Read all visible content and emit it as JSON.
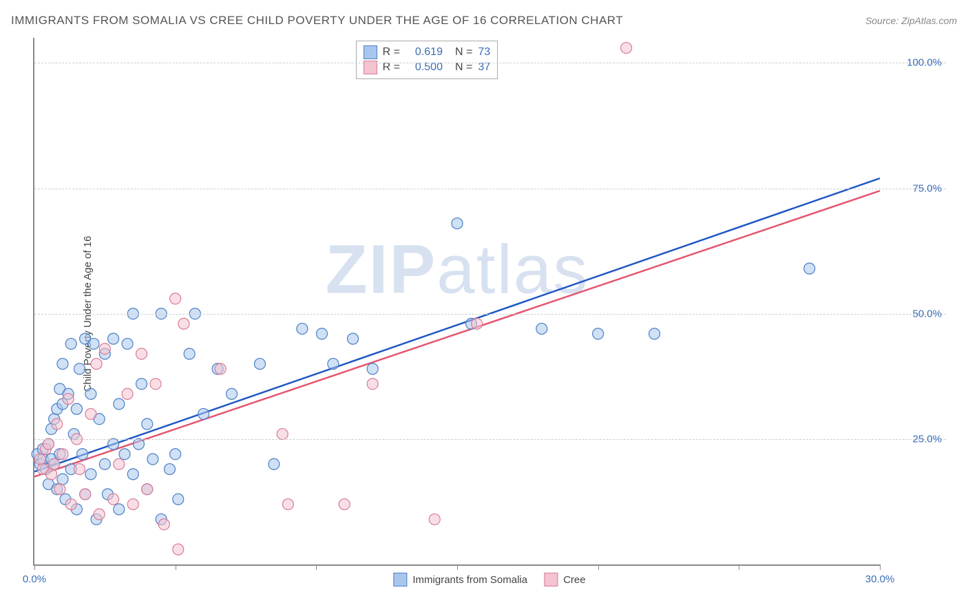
{
  "title": "IMMIGRANTS FROM SOMALIA VS CREE CHILD POVERTY UNDER THE AGE OF 16 CORRELATION CHART",
  "source": "Source: ZipAtlas.com",
  "y_axis_label": "Child Poverty Under the Age of 16",
  "watermark_a": "ZIP",
  "watermark_b": "atlas",
  "chart": {
    "type": "scatter",
    "xlim": [
      0,
      30
    ],
    "ylim": [
      0,
      105
    ],
    "x_ticks": [
      0,
      5,
      10,
      15,
      20,
      25,
      30
    ],
    "x_tick_labels": {
      "0": "0.0%",
      "30": "30.0%"
    },
    "y_ticks": [
      25,
      50,
      75,
      100
    ],
    "y_tick_labels": {
      "25": "25.0%",
      "50": "50.0%",
      "75": "75.0%",
      "100": "100.0%"
    },
    "grid_color": "#cccccc",
    "axis_color": "#888888",
    "tick_label_color": "#3b6db5",
    "background_color": "#ffffff",
    "marker_radius": 8,
    "marker_opacity": 0.55,
    "series": [
      {
        "name": "Immigrants from Somalia",
        "fill": "#a9c6ec",
        "stroke": "#4a7fc4",
        "line_color": "#1f57c4",
        "R": "0.619",
        "N": "73",
        "reg_start": [
          0,
          18.5
        ],
        "reg_end": [
          30,
          77.0
        ],
        "points": [
          [
            0.1,
            22
          ],
          [
            0.2,
            20
          ],
          [
            0.3,
            21
          ],
          [
            0.3,
            23
          ],
          [
            0.4,
            19
          ],
          [
            0.5,
            24
          ],
          [
            0.5,
            16
          ],
          [
            0.6,
            21
          ],
          [
            0.6,
            27
          ],
          [
            0.7,
            20
          ],
          [
            0.7,
            29
          ],
          [
            0.8,
            31
          ],
          [
            0.8,
            15
          ],
          [
            0.9,
            22
          ],
          [
            0.9,
            35
          ],
          [
            1.0,
            17
          ],
          [
            1.0,
            32
          ],
          [
            1.0,
            40
          ],
          [
            1.1,
            13
          ],
          [
            1.2,
            34
          ],
          [
            1.3,
            19
          ],
          [
            1.3,
            44
          ],
          [
            1.4,
            26
          ],
          [
            1.5,
            31
          ],
          [
            1.5,
            11
          ],
          [
            1.6,
            39
          ],
          [
            1.7,
            22
          ],
          [
            1.8,
            45
          ],
          [
            1.8,
            14
          ],
          [
            2.0,
            34
          ],
          [
            2.0,
            18
          ],
          [
            2.1,
            44
          ],
          [
            2.2,
            9
          ],
          [
            2.3,
            29
          ],
          [
            2.5,
            20
          ],
          [
            2.5,
            42
          ],
          [
            2.6,
            14
          ],
          [
            2.8,
            24
          ],
          [
            2.8,
            45
          ],
          [
            3.0,
            32
          ],
          [
            3.0,
            11
          ],
          [
            3.2,
            22
          ],
          [
            3.3,
            44
          ],
          [
            3.5,
            50
          ],
          [
            3.5,
            18
          ],
          [
            3.7,
            24
          ],
          [
            3.8,
            36
          ],
          [
            4.0,
            15
          ],
          [
            4.0,
            28
          ],
          [
            4.2,
            21
          ],
          [
            4.5,
            9
          ],
          [
            4.5,
            50
          ],
          [
            4.8,
            19
          ],
          [
            5.0,
            22
          ],
          [
            5.1,
            13
          ],
          [
            5.5,
            42
          ],
          [
            5.7,
            50
          ],
          [
            6.0,
            30
          ],
          [
            6.5,
            39
          ],
          [
            7.0,
            34
          ],
          [
            8.0,
            40
          ],
          [
            8.5,
            20
          ],
          [
            9.5,
            47
          ],
          [
            10.2,
            46
          ],
          [
            10.6,
            40
          ],
          [
            11.3,
            45
          ],
          [
            12.0,
            39
          ],
          [
            15.0,
            68
          ],
          [
            15.5,
            48
          ],
          [
            18.0,
            47
          ],
          [
            20.0,
            46
          ],
          [
            22.0,
            46
          ],
          [
            27.5,
            59
          ]
        ]
      },
      {
        "name": "Cree",
        "fill": "#f4c4d0",
        "stroke": "#d97a96",
        "line_color": "#e5546f",
        "R": "0.500",
        "N": "37",
        "reg_start": [
          0,
          17.5
        ],
        "reg_end": [
          30,
          74.5
        ],
        "points": [
          [
            0.2,
            21
          ],
          [
            0.3,
            19
          ],
          [
            0.4,
            23
          ],
          [
            0.5,
            24
          ],
          [
            0.6,
            18
          ],
          [
            0.7,
            20
          ],
          [
            0.8,
            28
          ],
          [
            0.9,
            15
          ],
          [
            1.0,
            22
          ],
          [
            1.2,
            33
          ],
          [
            1.3,
            12
          ],
          [
            1.5,
            25
          ],
          [
            1.6,
            19
          ],
          [
            1.8,
            14
          ],
          [
            2.0,
            30
          ],
          [
            2.2,
            40
          ],
          [
            2.3,
            10
          ],
          [
            2.5,
            43
          ],
          [
            2.8,
            13
          ],
          [
            3.0,
            20
          ],
          [
            3.3,
            34
          ],
          [
            3.5,
            12
          ],
          [
            3.8,
            42
          ],
          [
            4.0,
            15
          ],
          [
            4.3,
            36
          ],
          [
            4.6,
            8
          ],
          [
            5.0,
            53
          ],
          [
            5.1,
            3
          ],
          [
            5.3,
            48
          ],
          [
            6.6,
            39
          ],
          [
            8.8,
            26
          ],
          [
            9.0,
            12
          ],
          [
            11.0,
            12
          ],
          [
            12.0,
            36
          ],
          [
            14.2,
            9
          ],
          [
            15.7,
            48
          ],
          [
            21.0,
            103
          ]
        ]
      }
    ]
  },
  "legend_top": {
    "R_label": "R =",
    "N_label": "N ="
  },
  "legend_bottom": {
    "series1": "Immigrants from Somalia",
    "series2": "Cree"
  }
}
